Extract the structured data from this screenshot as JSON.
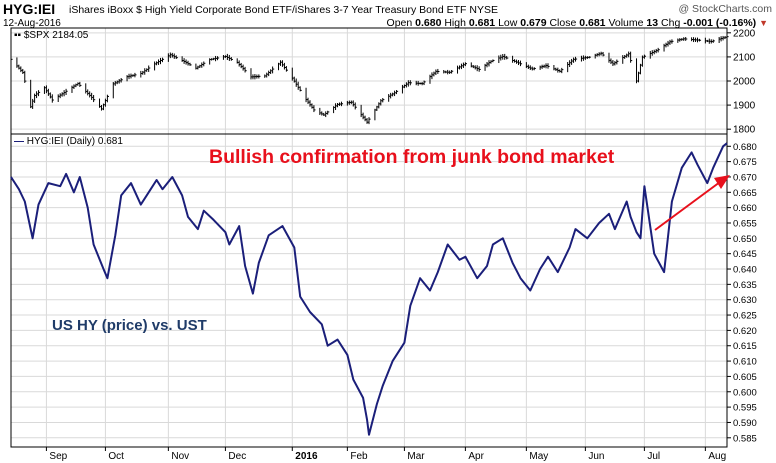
{
  "header": {
    "symbol": "HYG:IEI",
    "description": "iShares iBoxx $ High Yield Corporate Bond ETF/iShares 3-7 Year Treasury Bond ETF  NYSE",
    "watermark": "@ StockCharts.com",
    "date": "12-Aug-2016",
    "open_label": "Open",
    "open_value": "0.680",
    "high_label": "High",
    "high_value": "0.681",
    "low_label": "Low",
    "low_value": "0.679",
    "close_label": "Close",
    "close_value": "0.681",
    "volume_label": "Volume",
    "volume_value": "13",
    "chg_label": "Chg",
    "chg_value": "-0.001 (-0.16%)",
    "chg_arrow": "▼"
  },
  "annotations": {
    "red_text": "Bullish confirmation from junk bond market",
    "blue_text": "US HY (price) vs. UST"
  },
  "colors": {
    "main_line": "#1b1f7a",
    "price_bars": "#000000",
    "annotation_red": "#e8101c",
    "annotation_blue": "#1f3b68",
    "grid": "#d9d9d9"
  },
  "chart_data": [
    {
      "type": "line",
      "subtype": "ohlc",
      "legend": "$SPX 2184.05",
      "legend_symbol": "▪▪",
      "y_ticks": [
        "1800",
        "1900",
        "2000",
        "2100",
        "2200"
      ],
      "ylim": [
        1780,
        2220
      ],
      "x_ticks": [
        "Sep",
        "Oct",
        "Nov",
        "Dec",
        "2016",
        "Feb",
        "Mar",
        "Apr",
        "May",
        "Jun",
        "Jul",
        "Aug"
      ],
      "x_tick_dates": [
        "2015-09-01",
        "2015-10-01",
        "2015-11-02",
        "2015-12-01",
        "2016-01-04",
        "2016-02-01",
        "2016-03-01",
        "2016-04-01",
        "2016-05-02",
        "2016-06-01",
        "2016-07-01",
        "2016-08-01"
      ],
      "date_range": [
        "2015-08-14",
        "2016-08-12"
      ],
      "series": [
        {
          "dates": [
            "2015-08-14",
            "2015-08-20",
            "2015-08-24",
            "2015-08-26",
            "2015-08-31",
            "2015-09-04",
            "2015-09-10",
            "2015-09-17",
            "2015-09-24",
            "2015-09-29",
            "2015-10-05",
            "2015-10-12",
            "2015-10-19",
            "2015-10-26",
            "2015-11-03",
            "2015-11-10",
            "2015-11-16",
            "2015-11-23",
            "2015-12-01",
            "2015-12-07",
            "2015-12-14",
            "2015-12-21",
            "2015-12-29",
            "2016-01-04",
            "2016-01-11",
            "2016-01-15",
            "2016-01-20",
            "2016-01-27",
            "2016-02-03",
            "2016-02-11",
            "2016-02-18",
            "2016-02-25",
            "2016-03-03",
            "2016-03-10",
            "2016-03-17",
            "2016-03-24",
            "2016-04-01",
            "2016-04-08",
            "2016-04-14",
            "2016-04-20",
            "2016-04-28",
            "2016-05-05",
            "2016-05-12",
            "2016-05-19",
            "2016-05-26",
            "2016-06-03",
            "2016-06-09",
            "2016-06-15",
            "2016-06-23",
            "2016-06-27",
            "2016-06-30",
            "2016-07-08",
            "2016-07-14",
            "2016-07-21",
            "2016-07-28",
            "2016-08-04",
            "2016-08-12"
          ],
          "values": [
            2090,
            2035,
            1893,
            1940,
            1972,
            1921,
            1952,
            1990,
            1932,
            1884,
            1988,
            2018,
            2031,
            2071,
            2109,
            2081,
            2053,
            2089,
            2102,
            2077,
            2017,
            2021,
            2078,
            2012,
            1923,
            1880,
            1859,
            1903,
            1912,
            1829,
            1918,
            1951,
            1993,
            1989,
            2040,
            2036,
            2072,
            2048,
            2082,
            2102,
            2075,
            2050,
            2064,
            2040,
            2090,
            2099,
            2115,
            2071,
            2113,
            2000,
            2099,
            2130,
            2163,
            2175,
            2170,
            2164,
            2184
          ]
        }
      ]
    },
    {
      "type": "line",
      "legend": "HYG:IEI (Daily) 0.681",
      "legend_symbol": "—",
      "y_ticks": [
        "0.585",
        "0.590",
        "0.595",
        "0.600",
        "0.605",
        "0.610",
        "0.615",
        "0.620",
        "0.625",
        "0.630",
        "0.635",
        "0.640",
        "0.645",
        "0.650",
        "0.655",
        "0.660",
        "0.665",
        "0.670",
        "0.675",
        "0.680"
      ],
      "ylim": [
        0.582,
        0.684
      ],
      "x_ticks": [
        "Sep",
        "Oct",
        "Nov",
        "Dec",
        "2016",
        "Feb",
        "Mar",
        "Apr",
        "May",
        "Jun",
        "Jul",
        "Aug"
      ],
      "x_tick_dates": [
        "2015-09-01",
        "2015-10-01",
        "2015-11-02",
        "2015-12-01",
        "2016-01-04",
        "2016-02-01",
        "2016-03-01",
        "2016-04-01",
        "2016-05-02",
        "2016-06-01",
        "2016-07-01",
        "2016-08-01"
      ],
      "date_range": [
        "2015-08-14",
        "2016-08-12"
      ],
      "series": [
        {
          "dates": [
            "2015-08-14",
            "2015-08-18",
            "2015-08-21",
            "2015-08-25",
            "2015-08-28",
            "2015-09-02",
            "2015-09-08",
            "2015-09-11",
            "2015-09-15",
            "2015-09-18",
            "2015-09-22",
            "2015-09-25",
            "2015-09-30",
            "2015-10-02",
            "2015-10-06",
            "2015-10-09",
            "2015-10-14",
            "2015-10-19",
            "2015-10-22",
            "2015-10-27",
            "2015-10-30",
            "2015-11-04",
            "2015-11-09",
            "2015-11-12",
            "2015-11-17",
            "2015-11-20",
            "2015-11-25",
            "2015-12-01",
            "2015-12-03",
            "2015-12-08",
            "2015-12-11",
            "2015-12-15",
            "2015-12-18",
            "2015-12-23",
            "2015-12-30",
            "2016-01-05",
            "2016-01-08",
            "2016-01-13",
            "2016-01-19",
            "2016-01-22",
            "2016-01-27",
            "2016-02-01",
            "2016-02-04",
            "2016-02-09",
            "2016-02-11",
            "2016-02-12",
            "2016-02-16",
            "2016-02-19",
            "2016-02-24",
            "2016-03-01",
            "2016-03-04",
            "2016-03-09",
            "2016-03-14",
            "2016-03-18",
            "2016-03-23",
            "2016-03-29",
            "2016-04-01",
            "2016-04-07",
            "2016-04-12",
            "2016-04-15",
            "2016-04-20",
            "2016-04-25",
            "2016-04-29",
            "2016-05-04",
            "2016-05-09",
            "2016-05-13",
            "2016-05-18",
            "2016-05-24",
            "2016-05-27",
            "2016-06-02",
            "2016-06-08",
            "2016-06-13",
            "2016-06-16",
            "2016-06-22",
            "2016-06-24",
            "2016-06-27",
            "2016-06-29",
            "2016-07-01",
            "2016-07-06",
            "2016-07-11",
            "2016-07-15",
            "2016-07-20",
            "2016-07-25",
            "2016-07-28",
            "2016-08-02",
            "2016-08-05",
            "2016-08-10",
            "2016-08-12"
          ],
          "values": [
            0.67,
            0.666,
            0.662,
            0.65,
            0.661,
            0.668,
            0.667,
            0.671,
            0.665,
            0.67,
            0.66,
            0.648,
            0.64,
            0.637,
            0.651,
            0.664,
            0.668,
            0.661,
            0.664,
            0.669,
            0.666,
            0.67,
            0.664,
            0.657,
            0.653,
            0.659,
            0.656,
            0.652,
            0.648,
            0.654,
            0.641,
            0.632,
            0.642,
            0.651,
            0.654,
            0.647,
            0.631,
            0.626,
            0.622,
            0.615,
            0.617,
            0.612,
            0.604,
            0.598,
            0.591,
            0.586,
            0.596,
            0.602,
            0.61,
            0.616,
            0.628,
            0.637,
            0.633,
            0.639,
            0.648,
            0.643,
            0.644,
            0.637,
            0.641,
            0.648,
            0.65,
            0.642,
            0.637,
            0.633,
            0.64,
            0.644,
            0.639,
            0.647,
            0.653,
            0.65,
            0.655,
            0.658,
            0.653,
            0.662,
            0.657,
            0.652,
            0.65,
            0.667,
            0.645,
            0.639,
            0.662,
            0.673,
            0.678,
            0.674,
            0.668,
            0.673,
            0.68,
            0.681
          ]
        }
      ]
    }
  ]
}
